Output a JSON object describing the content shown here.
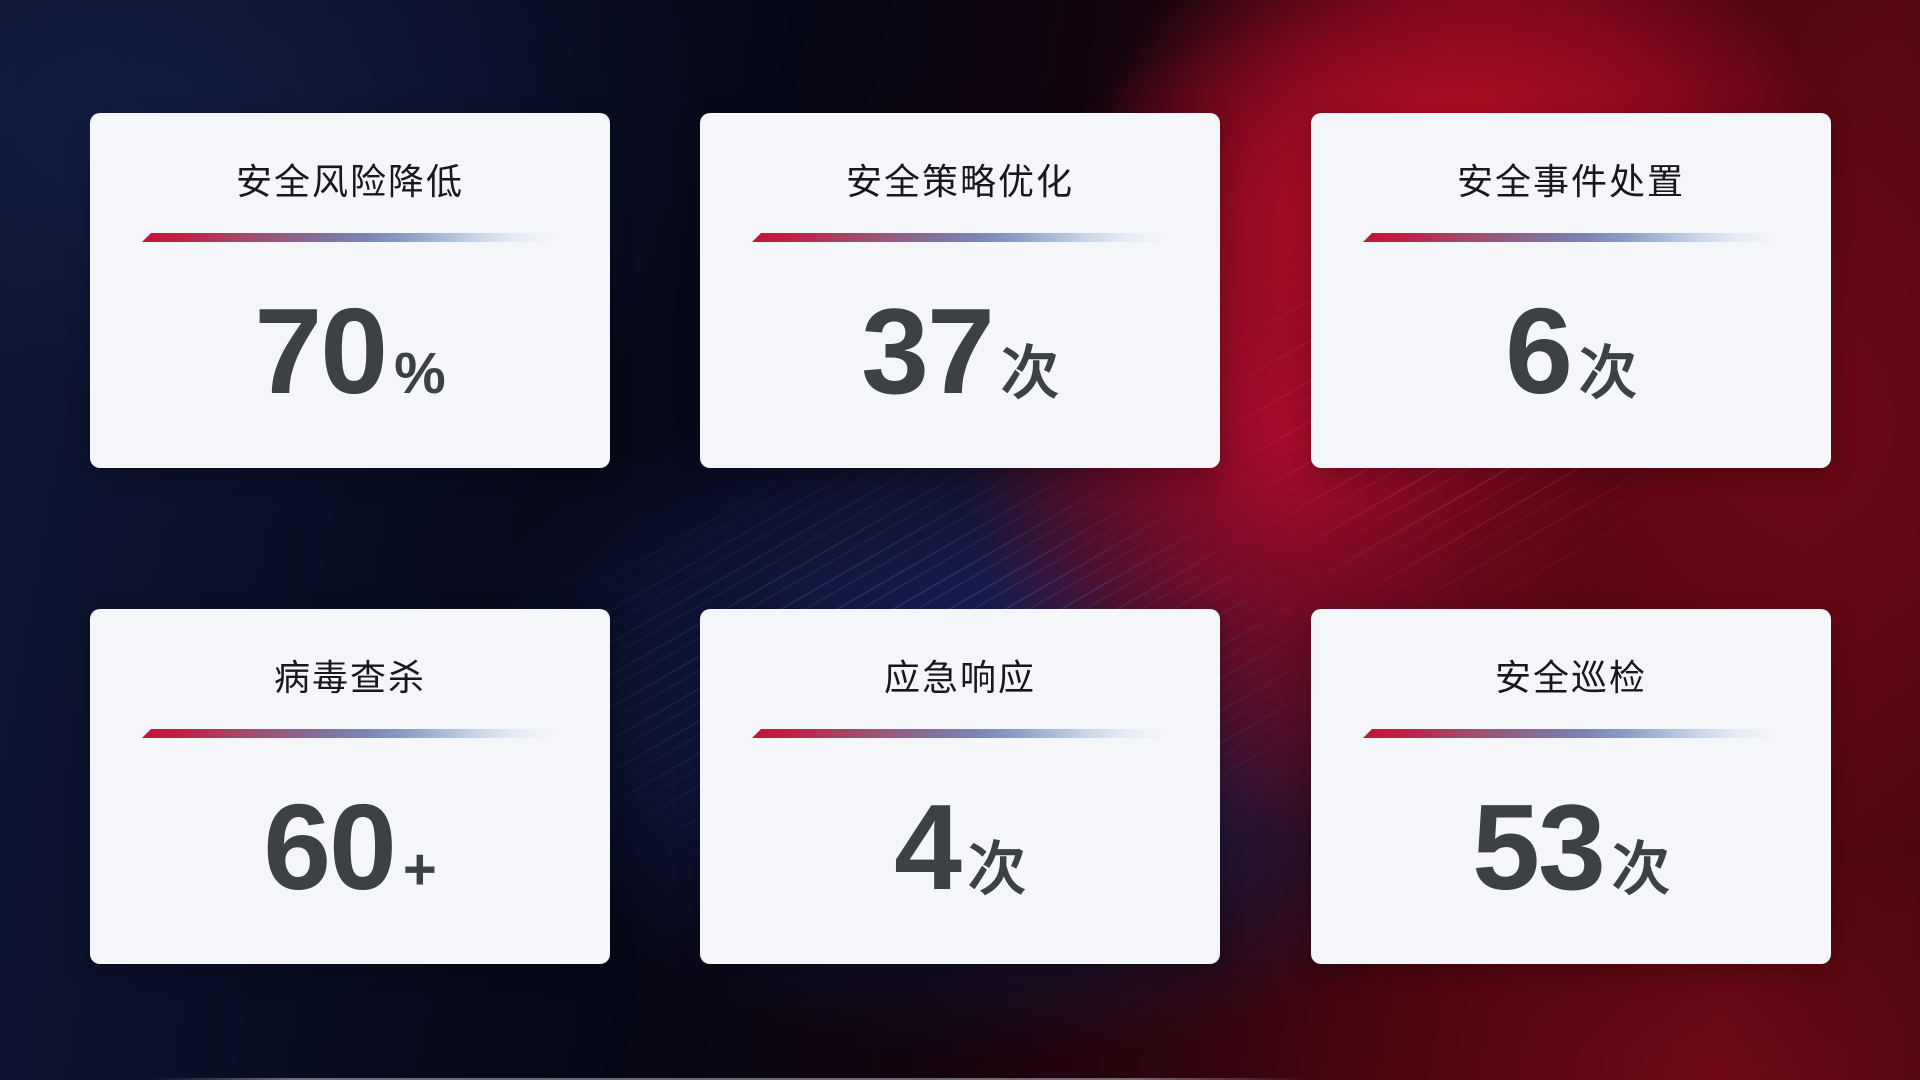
{
  "cards": [
    {
      "title": "安全风险降低",
      "value": "70",
      "suffix": "%"
    },
    {
      "title": "安全策略优化",
      "value": "37",
      "suffix": "次"
    },
    {
      "title": "安全事件处置",
      "value": "6",
      "suffix": "次"
    },
    {
      "title": "病毒查杀",
      "value": "60",
      "suffix": "+"
    },
    {
      "title": "应急响应",
      "value": "4",
      "suffix": "次"
    },
    {
      "title": "安全巡检",
      "value": "53",
      "suffix": "次"
    }
  ],
  "colors": {
    "card_background": "#f5f6fa",
    "title_text": "#16181d",
    "value_text": "#3d4045",
    "divider_red": "#c3143a",
    "divider_slate_blue": "#7b85b2",
    "divider_light_blue": "#a9b9d8",
    "background_navy": "#0e1634",
    "background_crimson": "#c00f32",
    "background_maroon": "#55060f"
  }
}
